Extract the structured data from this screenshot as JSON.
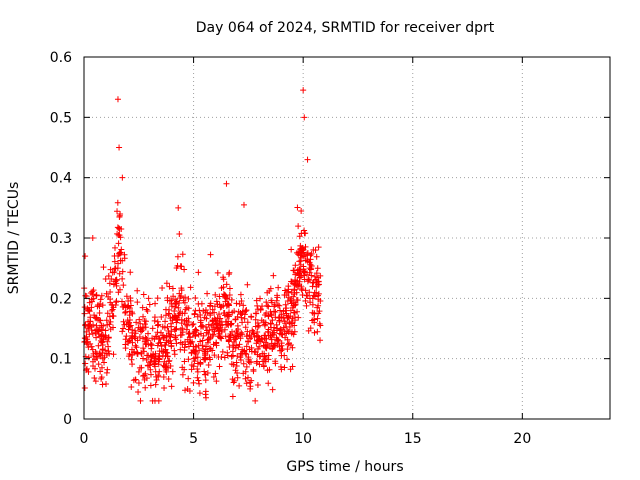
{
  "chart_data": {
    "type": "scatter",
    "title": "Day 064 of 2024, SRMTID for receiver dprt",
    "xlabel": "GPS time / hours",
    "ylabel": "SRMTID / TECUs",
    "xlim": [
      0,
      24
    ],
    "ylim": [
      0,
      0.6
    ],
    "x_ticks": [
      0,
      5,
      10,
      15,
      20
    ],
    "y_ticks": [
      0,
      0.1,
      0.2,
      0.3,
      0.4,
      0.5,
      0.6
    ],
    "x_tick_labels": [
      "0",
      "5",
      "10",
      "15",
      "20"
    ],
    "y_tick_labels": [
      "0",
      "0.1",
      "0.2",
      "0.3",
      "0.4",
      "0.5",
      "0.6"
    ],
    "grid": true,
    "marker": "+",
    "color": "#ff0000",
    "data_extent_hours": [
      0,
      10.8
    ],
    "peaks": [
      {
        "x": 0.05,
        "y": 0.27
      },
      {
        "x": 0.4,
        "y": 0.3
      },
      {
        "x": 1.55,
        "y": 0.53
      },
      {
        "x": 1.6,
        "y": 0.45
      },
      {
        "x": 1.75,
        "y": 0.4
      },
      {
        "x": 4.3,
        "y": 0.35
      },
      {
        "x": 6.5,
        "y": 0.39
      },
      {
        "x": 7.3,
        "y": 0.355
      },
      {
        "x": 10.0,
        "y": 0.545
      },
      {
        "x": 10.05,
        "y": 0.5
      },
      {
        "x": 10.2,
        "y": 0.43
      }
    ],
    "envelope": [
      {
        "x": 0.0,
        "y": 0.14
      },
      {
        "x": 0.5,
        "y": 0.13
      },
      {
        "x": 1.0,
        "y": 0.13
      },
      {
        "x": 1.4,
        "y": 0.22
      },
      {
        "x": 1.6,
        "y": 0.3
      },
      {
        "x": 1.8,
        "y": 0.2
      },
      {
        "x": 2.2,
        "y": 0.13
      },
      {
        "x": 3.0,
        "y": 0.12
      },
      {
        "x": 3.5,
        "y": 0.11
      },
      {
        "x": 4.0,
        "y": 0.14
      },
      {
        "x": 4.3,
        "y": 0.19
      },
      {
        "x": 4.6,
        "y": 0.14
      },
      {
        "x": 5.0,
        "y": 0.13
      },
      {
        "x": 5.5,
        "y": 0.12
      },
      {
        "x": 6.0,
        "y": 0.13
      },
      {
        "x": 6.5,
        "y": 0.2
      },
      {
        "x": 6.8,
        "y": 0.12
      },
      {
        "x": 7.2,
        "y": 0.14
      },
      {
        "x": 7.6,
        "y": 0.11
      },
      {
        "x": 8.2,
        "y": 0.13
      },
      {
        "x": 8.6,
        "y": 0.15
      },
      {
        "x": 9.0,
        "y": 0.14
      },
      {
        "x": 9.5,
        "y": 0.18
      },
      {
        "x": 10.0,
        "y": 0.27
      },
      {
        "x": 10.4,
        "y": 0.22
      },
      {
        "x": 10.8,
        "y": 0.2
      }
    ],
    "n_points": 1300
  }
}
